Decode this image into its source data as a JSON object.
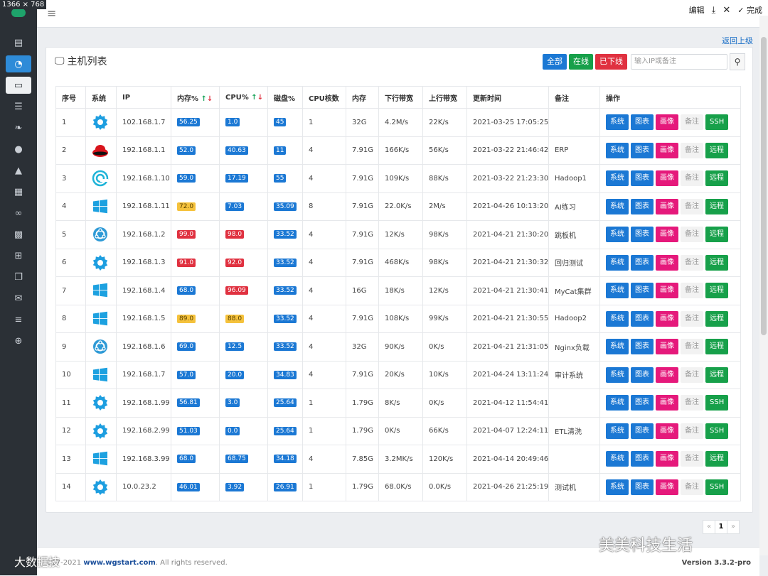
{
  "screen_size_label": "1366 × 768",
  "toolbar_top": {
    "edit": "编辑",
    "done": "完成"
  },
  "back_link": "返回上级",
  "panel": {
    "title": "主机列表",
    "filters": {
      "all": "全部",
      "online": "在线",
      "offline": "已下线"
    },
    "search_placeholder": "输入IP或备注"
  },
  "table": {
    "headers": [
      "序号",
      "系统",
      "IP",
      "内存%",
      "CPU%",
      "磁盘%",
      "CPU核数",
      "内存",
      "下行带宽",
      "上行带宽",
      "更新时间",
      "备注",
      "操作"
    ],
    "rows": [
      {
        "no": "1",
        "os": "gear",
        "ip": "102.168.1.7",
        "mem": "56.25",
        "mem_c": "blue",
        "cpu": "1.0",
        "cpu_c": "blue",
        "disk": "45",
        "disk_c": "blue",
        "cores": "1",
        "ram": "32G",
        "down": "4.2M/s",
        "up": "22K/s",
        "time": "2021-03-25 17:05:25",
        "note": "",
        "last": "SSH"
      },
      {
        "no": "2",
        "os": "redhat",
        "ip": "192.168.1.1",
        "mem": "52.0",
        "mem_c": "blue",
        "cpu": "40.63",
        "cpu_c": "blue",
        "disk": "11",
        "disk_c": "blue",
        "cores": "4",
        "ram": "7.91G",
        "down": "166K/s",
        "up": "56K/s",
        "time": "2021-03-22 21:46:42",
        "note": "ERP",
        "last": "远程"
      },
      {
        "no": "3",
        "os": "debian",
        "ip": "192.168.1.10",
        "mem": "59.0",
        "mem_c": "blue",
        "cpu": "17.19",
        "cpu_c": "blue",
        "disk": "55",
        "disk_c": "blue",
        "cores": "4",
        "ram": "7.91G",
        "down": "109K/s",
        "up": "88K/s",
        "time": "2021-03-22 21:23:30",
        "note": "Hadoop1",
        "last": "远程"
      },
      {
        "no": "4",
        "os": "windows",
        "ip": "192.168.1.11",
        "mem": "72.0",
        "mem_c": "yellow",
        "cpu": "7.03",
        "cpu_c": "blue",
        "disk": "35.09",
        "disk_c": "blue",
        "cores": "8",
        "ram": "7.91G",
        "down": "22.0K/s",
        "up": "2M/s",
        "time": "2021-04-26 10:13:20",
        "note": "AI练习",
        "last": "远程"
      },
      {
        "no": "5",
        "os": "ubuntu",
        "ip": "192.168.1.2",
        "mem": "99.0",
        "mem_c": "red",
        "cpu": "98.0",
        "cpu_c": "red",
        "disk": "33.52",
        "disk_c": "blue",
        "cores": "4",
        "ram": "7.91G",
        "down": "12K/s",
        "up": "98K/s",
        "time": "2021-04-21 21:30:20",
        "note": "跳板机",
        "last": "远程"
      },
      {
        "no": "6",
        "os": "gear",
        "ip": "192.168.1.3",
        "mem": "91.0",
        "mem_c": "red",
        "cpu": "92.0",
        "cpu_c": "red",
        "disk": "33.52",
        "disk_c": "blue",
        "cores": "4",
        "ram": "7.91G",
        "down": "468K/s",
        "up": "98K/s",
        "time": "2021-04-21 21:30:32",
        "note": "回归测试",
        "last": "远程"
      },
      {
        "no": "7",
        "os": "windows",
        "ip": "192.168.1.4",
        "mem": "68.0",
        "mem_c": "blue",
        "cpu": "96.09",
        "cpu_c": "red",
        "disk": "33.52",
        "disk_c": "blue",
        "cores": "4",
        "ram": "16G",
        "down": "18K/s",
        "up": "12K/s",
        "time": "2021-04-21 21:30:41",
        "note": "MyCat集群",
        "last": "远程"
      },
      {
        "no": "8",
        "os": "windows",
        "ip": "192.168.1.5",
        "mem": "89.0",
        "mem_c": "yellow",
        "cpu": "88.0",
        "cpu_c": "yellow",
        "disk": "33.52",
        "disk_c": "blue",
        "cores": "4",
        "ram": "7.91G",
        "down": "108K/s",
        "up": "99K/s",
        "time": "2021-04-21 21:30:55",
        "note": "Hadoop2",
        "last": "远程"
      },
      {
        "no": "9",
        "os": "ubuntu",
        "ip": "192.168.1.6",
        "mem": "69.0",
        "mem_c": "blue",
        "cpu": "12.5",
        "cpu_c": "blue",
        "disk": "33.52",
        "disk_c": "blue",
        "cores": "4",
        "ram": "32G",
        "down": "90K/s",
        "up": "0K/s",
        "time": "2021-04-21 21:31:05",
        "note": "Nginx负载",
        "last": "远程"
      },
      {
        "no": "10",
        "os": "windows",
        "ip": "192.168.1.7",
        "mem": "57.0",
        "mem_c": "blue",
        "cpu": "20.0",
        "cpu_c": "blue",
        "disk": "34.83",
        "disk_c": "blue",
        "cores": "4",
        "ram": "7.91G",
        "down": "20K/s",
        "up": "10K/s",
        "time": "2021-04-24 13:11:24",
        "note": "审计系统",
        "last": "远程"
      },
      {
        "no": "11",
        "os": "gear",
        "ip": "192.168.1.99",
        "mem": "56.81",
        "mem_c": "blue",
        "cpu": "3.0",
        "cpu_c": "blue",
        "disk": "25.64",
        "disk_c": "blue",
        "cores": "1",
        "ram": "1.79G",
        "down": "8K/s",
        "up": "0K/s",
        "time": "2021-04-12 11:54:41",
        "note": "",
        "last": "SSH"
      },
      {
        "no": "12",
        "os": "gear",
        "ip": "192.168.2.99",
        "mem": "51.03",
        "mem_c": "blue",
        "cpu": "0.0",
        "cpu_c": "blue",
        "disk": "25.64",
        "disk_c": "blue",
        "cores": "1",
        "ram": "1.79G",
        "down": "0K/s",
        "up": "66K/s",
        "time": "2021-04-07 12:24:11",
        "note": "ETL清洗",
        "last": "SSH"
      },
      {
        "no": "13",
        "os": "windows",
        "ip": "192.168.3.99",
        "mem": "68.0",
        "mem_c": "blue",
        "cpu": "68.75",
        "cpu_c": "blue",
        "disk": "34.18",
        "disk_c": "blue",
        "cores": "4",
        "ram": "7.85G",
        "down": "3.2MK/s",
        "up": "120K/s",
        "time": "2021-04-14 20:49:46",
        "note": "",
        "last": "远程"
      },
      {
        "no": "14",
        "os": "gear",
        "ip": "10.0.23.2",
        "mem": "46.01",
        "mem_c": "blue",
        "cpu": "3.92",
        "cpu_c": "blue",
        "disk": "26.91",
        "disk_c": "blue",
        "cores": "1",
        "ram": "1.79G",
        "down": "68.0K/s",
        "up": "0.0K/s",
        "time": "2021-04-26 21:25:19",
        "note": "测试机",
        "last": "SSH"
      }
    ],
    "op_labels": {
      "sys": "系统",
      "chart": "图表",
      "profile": "画像",
      "note": "备注"
    }
  },
  "pagination": {
    "prev": "«",
    "current": "1",
    "next": "»"
  },
  "footer": {
    "copyright_prefix": "017-2021",
    "site": "www.wgstart.com",
    "rights": ". All rights reserved.",
    "version": "Version 3.3.2-pro"
  },
  "watermark": {
    "brand": "美美科技生活",
    "left": "大数据技"
  },
  "colors": {
    "primary": "#1b78d4",
    "success": "#17a04a",
    "danger": "#e03140",
    "warning": "#f5c23c",
    "pink": "#e5197b",
    "sidebar": "#2b3036"
  }
}
